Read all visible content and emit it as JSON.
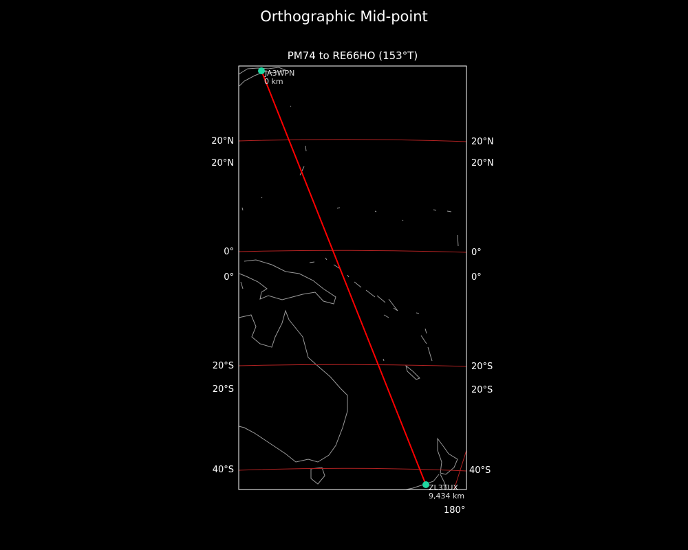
{
  "figure": {
    "title": "Orthographic Mid-point"
  },
  "map": {
    "title": "PM74 to RE66HO (153°T)",
    "projection": "orthographic",
    "colors": {
      "background": "#000000",
      "coastline": "#9a9a9a",
      "gridline": "#b22222",
      "path": "#ff0000",
      "marker": "#1fd6a0"
    },
    "lat_labels_left_outer": [
      "20°N",
      "0°",
      "20°S",
      "40°S"
    ],
    "lat_labels_left_inner": [
      "20°N",
      "0°",
      "20°S"
    ],
    "lat_labels_right_outer": [
      "20°N",
      "0°",
      "20°S",
      "40°S"
    ],
    "lat_labels_right_inner": [
      "20°N",
      "0°",
      "20°S"
    ],
    "lon_label": "180°",
    "start": {
      "callsign": "JA3WPN",
      "distance": "0 km"
    },
    "end": {
      "callsign": "ZL3TUX",
      "distance": "9,434 km"
    }
  }
}
